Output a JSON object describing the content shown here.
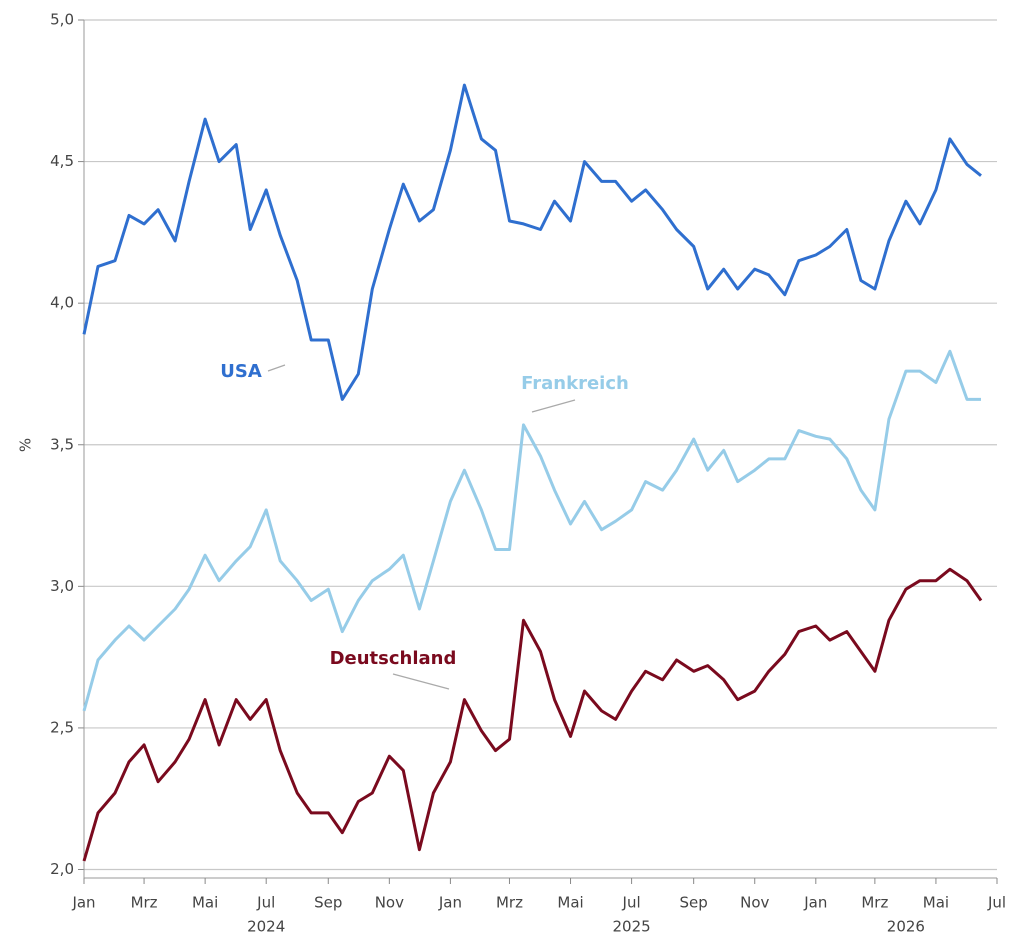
{
  "chart_data": {
    "type": "line",
    "y_label": "%",
    "x": [
      "2024-01-01",
      "2024-01-15",
      "2024-02-01",
      "2024-02-15",
      "2024-03-01",
      "2024-03-15",
      "2024-04-01",
      "2024-04-15",
      "2024-05-01",
      "2024-05-15",
      "2024-06-01",
      "2024-06-15",
      "2024-07-01",
      "2024-07-15",
      "2024-08-01",
      "2024-08-15",
      "2024-09-01",
      "2024-09-15",
      "2024-10-01",
      "2024-10-15",
      "2024-11-01",
      "2024-11-15",
      "2024-12-01",
      "2024-12-15",
      "2025-01-01",
      "2025-01-15",
      "2025-02-01",
      "2025-02-15",
      "2025-03-01",
      "2025-03-15",
      "2025-04-01",
      "2025-04-15",
      "2025-05-01",
      "2025-05-15",
      "2025-06-01",
      "2025-06-15",
      "2025-07-01",
      "2025-07-15",
      "2025-08-01",
      "2025-08-15",
      "2025-09-01",
      "2025-09-15",
      "2025-10-01",
      "2025-10-15",
      "2025-11-01",
      "2025-11-15",
      "2025-12-01",
      "2025-12-15",
      "2026-01-01",
      "2026-01-15",
      "2026-02-01",
      "2026-02-15",
      "2026-03-01",
      "2026-03-15",
      "2026-04-01",
      "2026-04-15",
      "2026-05-01",
      "2026-05-15",
      "2026-06-01",
      "2026-06-15"
    ],
    "series": [
      {
        "name": "USA",
        "color": "#2f6fcf",
        "values": [
          3.89,
          4.13,
          4.15,
          4.31,
          4.28,
          4.33,
          4.22,
          4.43,
          4.65,
          4.5,
          4.56,
          4.26,
          4.4,
          4.24,
          4.08,
          3.87,
          3.87,
          3.66,
          3.75,
          4.05,
          4.26,
          4.42,
          4.29,
          4.33,
          4.54,
          4.77,
          4.58,
          4.54,
          4.29,
          4.28,
          4.26,
          4.36,
          4.29,
          4.5,
          4.43,
          4.43,
          4.36,
          4.4,
          4.33,
          4.26,
          4.2,
          4.05,
          4.12,
          4.05,
          4.12,
          4.1,
          4.03,
          4.15,
          4.17,
          4.2,
          4.26,
          4.08,
          4.05,
          4.22,
          4.36,
          4.28,
          4.4,
          4.58,
          4.49,
          4.45
        ]
      },
      {
        "name": "Frankreich",
        "color": "#96cce8",
        "values": [
          2.56,
          2.74,
          2.81,
          2.86,
          2.81,
          2.86,
          2.92,
          2.99,
          3.11,
          3.02,
          3.09,
          3.14,
          3.27,
          3.09,
          3.02,
          2.95,
          2.99,
          2.84,
          2.95,
          3.02,
          3.06,
          3.11,
          2.92,
          3.09,
          3.3,
          3.41,
          3.27,
          3.13,
          3.13,
          3.57,
          3.46,
          3.34,
          3.22,
          3.3,
          3.2,
          3.23,
          3.27,
          3.37,
          3.34,
          3.41,
          3.52,
          3.41,
          3.48,
          3.37,
          3.41,
          3.45,
          3.45,
          3.55,
          3.53,
          3.52,
          3.45,
          3.34,
          3.27,
          3.59,
          3.76,
          3.76,
          3.72,
          3.83,
          3.66,
          3.66
        ]
      },
      {
        "name": "Deutschland",
        "color": "#7a0a1e",
        "values": [
          2.03,
          2.2,
          2.27,
          2.38,
          2.44,
          2.31,
          2.38,
          2.46,
          2.6,
          2.44,
          2.6,
          2.53,
          2.6,
          2.42,
          2.27,
          2.2,
          2.2,
          2.13,
          2.24,
          2.27,
          2.4,
          2.35,
          2.07,
          2.27,
          2.38,
          2.6,
          2.49,
          2.42,
          2.46,
          2.88,
          2.77,
          2.6,
          2.47,
          2.63,
          2.56,
          2.53,
          2.63,
          2.7,
          2.67,
          2.74,
          2.7,
          2.72,
          2.67,
          2.6,
          2.63,
          2.7,
          2.76,
          2.84,
          2.86,
          2.81,
          2.84,
          2.77,
          2.7,
          2.88,
          2.99,
          3.02,
          3.02,
          3.06,
          3.02,
          2.95
        ]
      }
    ],
    "xlim": [
      "2024-01-01",
      "2026-07-01"
    ],
    "xticks": [
      {
        "value": "2024-01-01",
        "label": "Jan"
      },
      {
        "value": "2024-03-01",
        "label": "Mrz"
      },
      {
        "value": "2024-05-01",
        "label": "Mai"
      },
      {
        "value": "2024-07-01",
        "label": "Jul"
      },
      {
        "value": "2024-09-01",
        "label": "Sep"
      },
      {
        "value": "2024-11-01",
        "label": "Nov"
      },
      {
        "value": "2025-01-01",
        "label": "Jan"
      },
      {
        "value": "2025-03-01",
        "label": "Mrz"
      },
      {
        "value": "2025-05-01",
        "label": "Mai"
      },
      {
        "value": "2025-07-01",
        "label": "Jul"
      },
      {
        "value": "2025-09-01",
        "label": "Sep"
      },
      {
        "value": "2025-11-01",
        "label": "Nov"
      },
      {
        "value": "2026-01-01",
        "label": "Jan"
      },
      {
        "value": "2026-03-01",
        "label": "Mrz"
      },
      {
        "value": "2026-05-01",
        "label": "Mai"
      },
      {
        "value": "2026-07-01",
        "label": "Jul"
      }
    ],
    "year_labels": [
      {
        "value": "2024-07-01",
        "label": "2024"
      },
      {
        "value": "2025-07-01",
        "label": "2025"
      },
      {
        "value": "2026-04-01",
        "label": "2026"
      }
    ],
    "ylim": [
      1.97,
      5
    ],
    "yticks": [
      {
        "value": 2,
        "label": "2,0"
      },
      {
        "value": 2.5,
        "label": "2,5"
      },
      {
        "value": 3,
        "label": "3,0"
      },
      {
        "value": 3.5,
        "label": "3,5"
      },
      {
        "value": 4,
        "label": "4,0"
      },
      {
        "value": 4.5,
        "label": "4,5"
      },
      {
        "value": 5,
        "label": "5,0"
      }
    ],
    "grid": true
  }
}
